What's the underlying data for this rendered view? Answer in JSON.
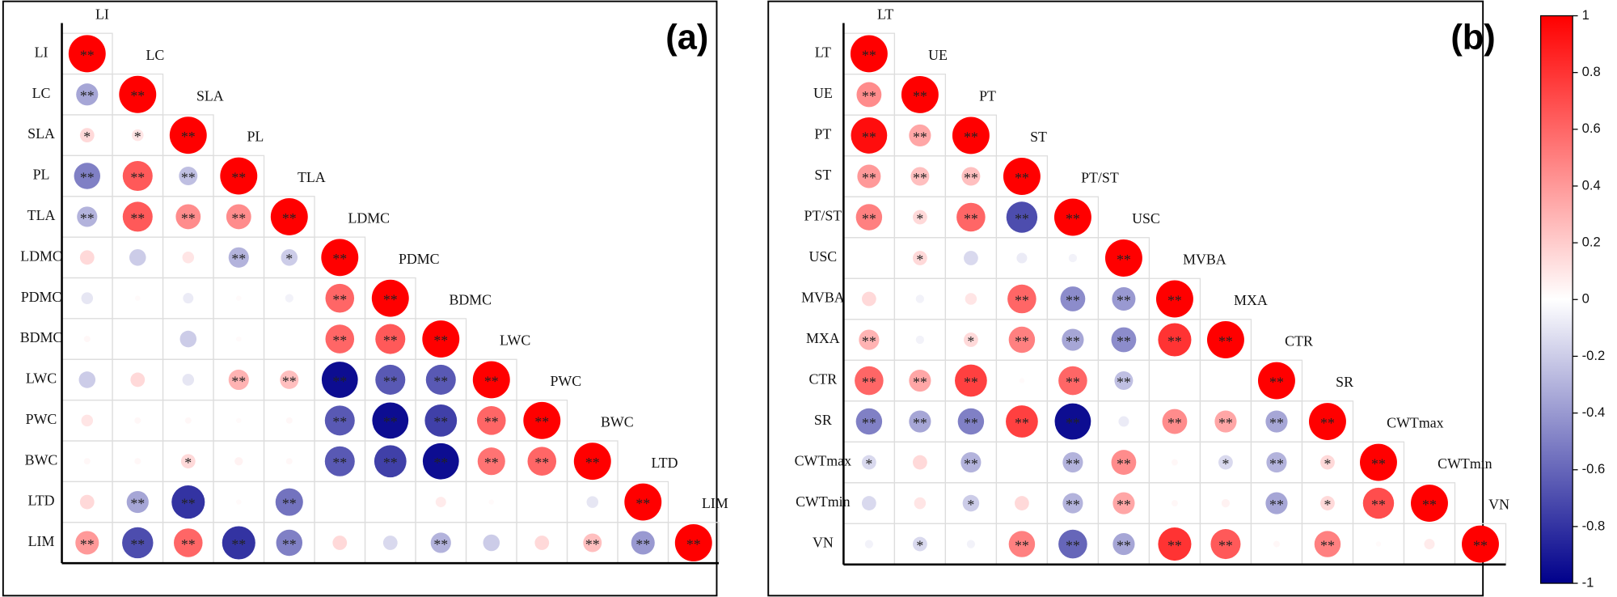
{
  "chart_data": [
    {
      "type": "corrplot",
      "title": "(a)",
      "variables": [
        "LI",
        "LC",
        "SLA",
        "PL",
        "TLA",
        "LDMC",
        "PDMC",
        "BDMC",
        "LWC",
        "PWC",
        "BWC",
        "LTD",
        "LIM"
      ],
      "values": [
        [
          1
        ],
        [
          -0.35,
          1
        ],
        [
          0.15,
          0.1,
          1
        ],
        [
          -0.5,
          0.65,
          -0.25,
          1
        ],
        [
          -0.3,
          0.65,
          0.45,
          0.45,
          1
        ],
        [
          0.15,
          -0.2,
          0.1,
          -0.3,
          -0.2,
          1
        ],
        [
          -0.1,
          0.02,
          -0.08,
          0.02,
          -0.05,
          0.6,
          1
        ],
        [
          0.03,
          0,
          -0.2,
          0.02,
          0,
          0.6,
          0.65,
          1
        ],
        [
          -0.2,
          0.15,
          -0.1,
          0.3,
          0.25,
          -0.95,
          -0.65,
          -0.65,
          1
        ],
        [
          0.1,
          0.03,
          0.03,
          0.02,
          0.03,
          -0.65,
          -0.95,
          -0.75,
          0.6,
          1
        ],
        [
          0.03,
          0.03,
          0.15,
          0.05,
          0.03,
          -0.65,
          -0.75,
          -0.95,
          0.55,
          0.6,
          1
        ],
        [
          0.15,
          -0.35,
          -0.8,
          0.02,
          -0.55,
          0,
          0,
          0.08,
          0.02,
          0,
          -0.1,
          1
        ],
        [
          0.4,
          -0.7,
          0.6,
          -0.8,
          -0.5,
          0.15,
          -0.15,
          -0.3,
          -0.2,
          0.15,
          0.25,
          -0.4,
          1
        ]
      ],
      "significance": [
        [
          "**"
        ],
        [
          "**",
          "**"
        ],
        [
          "*",
          "*",
          "**"
        ],
        [
          "**",
          "**",
          "**",
          "**"
        ],
        [
          "**",
          "**",
          "**",
          "**",
          "**"
        ],
        [
          null,
          null,
          null,
          "**",
          "*",
          "**"
        ],
        [
          null,
          null,
          null,
          null,
          null,
          "**",
          "**"
        ],
        [
          null,
          null,
          null,
          null,
          null,
          "**",
          "**",
          "**"
        ],
        [
          null,
          null,
          null,
          "**",
          "**",
          "**",
          "**",
          "**",
          "**"
        ],
        [
          null,
          null,
          null,
          null,
          null,
          "**",
          "**",
          "**",
          "**",
          "**"
        ],
        [
          null,
          null,
          "*",
          null,
          null,
          "**",
          "**",
          "**",
          "**",
          "**",
          "**"
        ],
        [
          null,
          "**",
          "**",
          null,
          "**",
          null,
          null,
          null,
          null,
          null,
          null,
          "**"
        ],
        [
          "**",
          "**",
          "**",
          "**",
          "**",
          null,
          null,
          "**",
          null,
          null,
          "**",
          "**",
          "**"
        ]
      ]
    },
    {
      "type": "corrplot",
      "title": "(b)",
      "variables": [
        "LT",
        "UE",
        "PT",
        "ST",
        "PT/ST",
        "USC",
        "MVBA",
        "MXA",
        "CTR",
        "SR",
        "CWTmax",
        "CWTmin",
        "VN"
      ],
      "values": [
        [
          1
        ],
        [
          0.45,
          1
        ],
        [
          0.95,
          0.35,
          1
        ],
        [
          0.4,
          0.25,
          0.25,
          1
        ],
        [
          0.5,
          0.15,
          0.6,
          -0.7,
          1
        ],
        [
          0,
          0.15,
          -0.15,
          -0.08,
          -0.05,
          1
        ],
        [
          0.15,
          -0.05,
          0.1,
          0.6,
          -0.45,
          -0.4,
          1
        ],
        [
          0.3,
          -0.05,
          0.15,
          0.5,
          -0.35,
          -0.45,
          0.8,
          1
        ],
        [
          0.6,
          0.35,
          0.75,
          0.02,
          0.6,
          -0.25,
          0,
          0,
          1
        ],
        [
          -0.5,
          -0.35,
          -0.5,
          0.75,
          -0.95,
          -0.08,
          0.45,
          0.35,
          -0.35,
          1
        ],
        [
          -0.15,
          0.15,
          -0.3,
          0,
          -0.3,
          0.45,
          0.03,
          -0.15,
          -0.3,
          0.15,
          1
        ],
        [
          -0.15,
          0.1,
          -0.2,
          0.15,
          -0.3,
          0.35,
          0.03,
          0.05,
          -0.35,
          0.15,
          0.7,
          1
        ],
        [
          -0.05,
          -0.15,
          -0.05,
          0.5,
          -0.6,
          -0.35,
          0.8,
          0.65,
          0.03,
          0.5,
          0.02,
          0.08,
          1
        ]
      ],
      "significance": [
        [
          "**"
        ],
        [
          "**",
          "**"
        ],
        [
          "**",
          "**",
          "**"
        ],
        [
          "**",
          "**",
          "**",
          "**"
        ],
        [
          "**",
          "*",
          "**",
          "**",
          "**"
        ],
        [
          null,
          "*",
          null,
          null,
          null,
          "**"
        ],
        [
          null,
          null,
          null,
          "**",
          "**",
          "**",
          "**"
        ],
        [
          "**",
          null,
          "*",
          "**",
          "**",
          "**",
          "**",
          "**"
        ],
        [
          "**",
          "**",
          "**",
          null,
          "**",
          "**",
          null,
          null,
          "**"
        ],
        [
          "**",
          "**",
          "**",
          "**",
          "**",
          null,
          "**",
          "**",
          "**",
          "**"
        ],
        [
          "*",
          null,
          "**",
          null,
          "**",
          "**",
          null,
          "*",
          "**",
          "*",
          "**"
        ],
        [
          null,
          null,
          "*",
          null,
          "**",
          "**",
          null,
          null,
          "**",
          "*",
          "**",
          "**"
        ],
        [
          null,
          "*",
          null,
          "**",
          "**",
          "**",
          "**",
          "**",
          null,
          "**",
          null,
          null,
          "**"
        ]
      ]
    }
  ],
  "colorbar": {
    "lim": [
      -1,
      1
    ],
    "low_color": "#00008b",
    "mid_color": "#ffffff",
    "high_color": "#ff0000",
    "ticks": [
      1,
      0.8,
      0.6,
      0.4,
      0.2,
      0,
      -0.2,
      -0.4,
      -0.6,
      -0.8,
      -1
    ]
  }
}
